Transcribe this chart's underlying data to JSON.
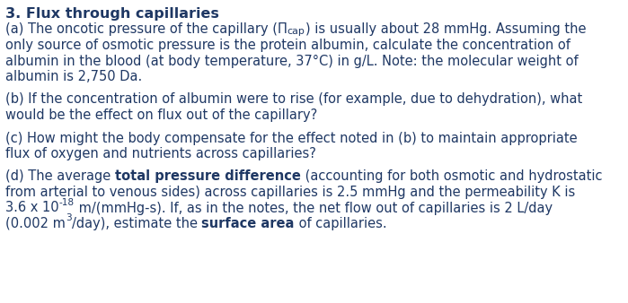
{
  "bg_color": "#ffffff",
  "text_color": "#1f3864",
  "title": "3. Flux through capillaries",
  "font_size": 10.5,
  "title_font_size": 11.5,
  "font_family": "DejaVu Sans",
  "lines": [
    {
      "type": "title",
      "segments": [
        {
          "text": "3. Flux through capillaries",
          "bold": true
        }
      ]
    },
    {
      "type": "body",
      "segments": [
        {
          "text": "(a) The oncotic pressure of the capillary (Π",
          "bold": false
        },
        {
          "text": "cap",
          "bold": false,
          "sub": true
        },
        {
          "text": ") is usually about 28 mmHg. Assuming the",
          "bold": false
        }
      ]
    },
    {
      "type": "body",
      "segments": [
        {
          "text": "only source of osmotic pressure is the protein albumin, calculate the concentration of",
          "bold": false
        }
      ]
    },
    {
      "type": "body",
      "segments": [
        {
          "text": "albumin in the blood (at body temperature, 37°C) in g/L. Note: the molecular weight of",
          "bold": false
        }
      ]
    },
    {
      "type": "body",
      "segments": [
        {
          "text": "albumin is 2,750 Da.",
          "bold": false
        }
      ]
    },
    {
      "type": "blank"
    },
    {
      "type": "body",
      "segments": [
        {
          "text": "(b) If the concentration of albumin were to rise (for example, due to dehydration), what",
          "bold": false
        }
      ]
    },
    {
      "type": "body",
      "segments": [
        {
          "text": "would be the effect on flux out of the capillary?",
          "bold": false
        }
      ]
    },
    {
      "type": "blank"
    },
    {
      "type": "body",
      "segments": [
        {
          "text": "(c) How might the body compensate for the effect noted in (b) to maintain appropriate",
          "bold": false
        }
      ]
    },
    {
      "type": "body",
      "segments": [
        {
          "text": "flux of oxygen and nutrients across capillaries?",
          "bold": false
        }
      ]
    },
    {
      "type": "blank"
    },
    {
      "type": "body",
      "segments": [
        {
          "text": "(d) The average ",
          "bold": false
        },
        {
          "text": "total pressure difference",
          "bold": true
        },
        {
          "text": " (accounting for both osmotic and hydrostatic",
          "bold": false
        }
      ]
    },
    {
      "type": "body",
      "segments": [
        {
          "text": "from arterial to venous sides) across capillaries is 2.5 mmHg and the permeability K is",
          "bold": false
        }
      ]
    },
    {
      "type": "body",
      "segments": [
        {
          "text": "3.6 x 10",
          "bold": false
        },
        {
          "text": "-18",
          "bold": false,
          "sup": true
        },
        {
          "text": " m/(mmHg-s). If, as in the notes, the net flow out of capillaries is 2 L/day",
          "bold": false
        }
      ]
    },
    {
      "type": "body",
      "segments": [
        {
          "text": "(0.002 m",
          "bold": false
        },
        {
          "text": "3",
          "bold": false,
          "sup": true
        },
        {
          "text": "/day), estimate the ",
          "bold": false
        },
        {
          "text": "surface area",
          "bold": true
        },
        {
          "text": " of capillaries.",
          "bold": false
        }
      ]
    }
  ]
}
